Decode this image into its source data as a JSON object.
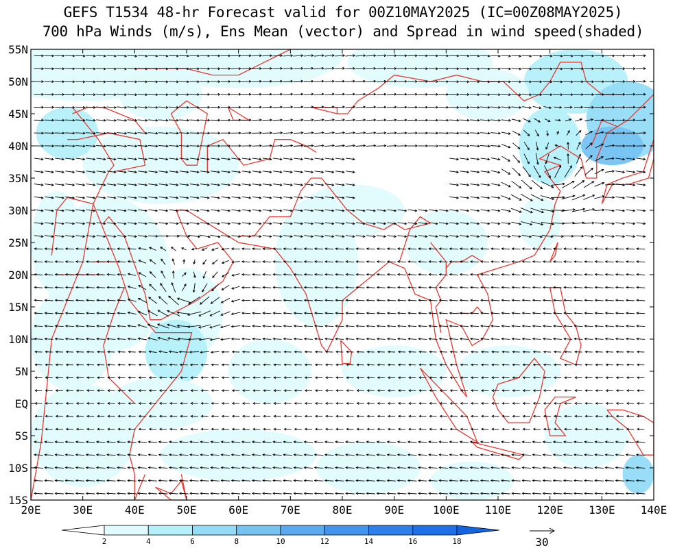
{
  "header": {
    "title_line1": "GEFS T1534 48-hr Forecast valid for 00Z10MAY2025 (IC=00Z08MAY2025)",
    "title_line2": "700 hPa Winds (m/s), Ens Mean (vector) and Spread in wind speed(shaded)"
  },
  "map": {
    "lon_range": [
      20,
      140
    ],
    "lat_range": [
      -15,
      55
    ],
    "lat_ticks": [
      "55N",
      "50N",
      "45N",
      "40N",
      "35N",
      "30N",
      "25N",
      "20N",
      "15N",
      "10N",
      "5N",
      "EQ",
      "5S",
      "10S",
      "15S"
    ],
    "lon_ticks": [
      "20E",
      "30E",
      "40E",
      "50E",
      "60E",
      "70E",
      "80E",
      "90E",
      "100E",
      "110E",
      "120E",
      "130E",
      "140E"
    ],
    "coastline_color": "#e8372f",
    "vector_color": "#000000"
  },
  "colorbar": {
    "levels": [
      "2",
      "4",
      "6",
      "8",
      "10",
      "12",
      "14",
      "16",
      "18"
    ],
    "colors": [
      "#ffffff",
      "#e0fbfd",
      "#b4f0fa",
      "#94dbf6",
      "#76c3f2",
      "#5aaaf0",
      "#4294ec",
      "#2f7fea",
      "#1f6fe6",
      "#1464e0"
    ]
  },
  "reference_vector": {
    "label": "30"
  }
}
